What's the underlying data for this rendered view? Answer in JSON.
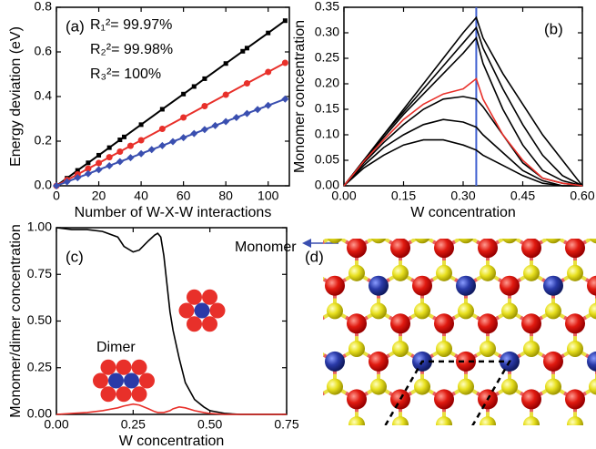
{
  "chart_data": [
    {
      "type": "line",
      "label": "(a)",
      "xlabel": "Number of W-X-W interactions",
      "ylabel": "Energy deviation (eV)",
      "xlim": [
        0,
        110
      ],
      "xticks": [
        0,
        20,
        40,
        60,
        80,
        100
      ],
      "ylim": [
        0,
        0.8
      ],
      "yticks": [
        {
          "value": 0,
          "label": "0.0"
        },
        {
          "value": 0.2,
          "label": "0.2"
        },
        {
          "value": 0.4,
          "label": "0.4"
        },
        {
          "value": 0.6,
          "label": "0.6"
        },
        {
          "value": 0.8,
          "label": "0.8"
        }
      ],
      "series": [
        {
          "name": "R₁²= 99.97%",
          "color": "#000000",
          "marker": "square",
          "x": [
            0,
            5,
            10,
            15,
            20,
            25,
            30,
            32,
            40,
            50,
            60,
            65,
            70,
            80,
            88,
            90,
            100,
            108
          ],
          "values": [
            0,
            0.034,
            0.069,
            0.103,
            0.137,
            0.171,
            0.206,
            0.219,
            0.274,
            0.343,
            0.411,
            0.445,
            0.48,
            0.548,
            0.603,
            0.617,
            0.685,
            0.74
          ]
        },
        {
          "name": "R₂²= 99.98%",
          "color": "#e8302a",
          "marker": "circle",
          "x": [
            0,
            5,
            10,
            15,
            20,
            25,
            30,
            35,
            40,
            50,
            60,
            70,
            80,
            90,
            100,
            108
          ],
          "values": [
            0,
            0.026,
            0.051,
            0.077,
            0.102,
            0.128,
            0.153,
            0.179,
            0.204,
            0.255,
            0.306,
            0.357,
            0.408,
            0.459,
            0.51,
            0.551
          ]
        },
        {
          "name": "R₃²= 100%",
          "color": "#3a4fb0",
          "marker": "diamond",
          "x": [
            0,
            5,
            10,
            15,
            20,
            25,
            30,
            35,
            40,
            45,
            50,
            55,
            60,
            65,
            70,
            75,
            80,
            85,
            90,
            95,
            100,
            108
          ],
          "values": [
            0,
            0.018,
            0.036,
            0.054,
            0.072,
            0.09,
            0.108,
            0.126,
            0.144,
            0.162,
            0.18,
            0.198,
            0.216,
            0.234,
            0.252,
            0.27,
            0.288,
            0.306,
            0.324,
            0.342,
            0.36,
            0.389
          ]
        }
      ]
    },
    {
      "type": "line",
      "label": "(b)",
      "xlabel": "W concentration",
      "ylabel": "Monomer concentration",
      "xlim": [
        0,
        0.6
      ],
      "xticks": [
        {
          "value": 0,
          "label": "0.00"
        },
        {
          "value": 0.15,
          "label": "0.15"
        },
        {
          "value": 0.3,
          "label": "0.30"
        },
        {
          "value": 0.45,
          "label": "0.45"
        },
        {
          "value": 0.6,
          "label": "0.60"
        }
      ],
      "ylim": [
        0,
        0.35
      ],
      "yticks": [
        {
          "value": 0,
          "label": "0.00"
        },
        {
          "value": 0.05,
          "label": "0.05"
        },
        {
          "value": 0.1,
          "label": "0.10"
        },
        {
          "value": 0.15,
          "label": "0.15"
        },
        {
          "value": 0.2,
          "label": "0.20"
        },
        {
          "value": 0.25,
          "label": "0.25"
        },
        {
          "value": 0.3,
          "label": "0.30"
        },
        {
          "value": 0.35,
          "label": "0.35"
        }
      ],
      "x": [
        0,
        0.05,
        0.1,
        0.15,
        0.2,
        0.25,
        0.3,
        0.333,
        0.35,
        0.4,
        0.45,
        0.5,
        0.55,
        0.6
      ],
      "vline": {
        "x": 0.333,
        "color": "#4060d0"
      },
      "series": [
        {
          "color": "#000000",
          "values": [
            0,
            0.05,
            0.1,
            0.15,
            0.2,
            0.25,
            0.3,
            0.33,
            0.29,
            0.22,
            0.16,
            0.1,
            0.05,
            0
          ]
        },
        {
          "color": "#000000",
          "values": [
            0,
            0.05,
            0.1,
            0.145,
            0.19,
            0.235,
            0.28,
            0.31,
            0.27,
            0.19,
            0.12,
            0.06,
            0.02,
            0
          ]
        },
        {
          "color": "#000000",
          "values": [
            0,
            0.05,
            0.095,
            0.14,
            0.18,
            0.22,
            0.26,
            0.29,
            0.24,
            0.15,
            0.08,
            0.03,
            0.01,
            0
          ]
        },
        {
          "color": "#000000",
          "values": [
            0,
            0.045,
            0.085,
            0.12,
            0.15,
            0.17,
            0.175,
            0.17,
            0.155,
            0.1,
            0.045,
            0.015,
            0.005,
            0
          ]
        },
        {
          "color": "#000000",
          "values": [
            0,
            0.04,
            0.075,
            0.1,
            0.12,
            0.13,
            0.125,
            0.115,
            0.1,
            0.065,
            0.03,
            0.01,
            0,
            0
          ]
        },
        {
          "color": "#000000",
          "values": [
            0,
            0.035,
            0.06,
            0.08,
            0.09,
            0.09,
            0.08,
            0.07,
            0.06,
            0.04,
            0.02,
            0.005,
            0,
            0
          ]
        },
        {
          "color": "#e8302a",
          "values": [
            0,
            0.048,
            0.09,
            0.13,
            0.16,
            0.18,
            0.19,
            0.21,
            0.17,
            0.1,
            0.05,
            0.015,
            0.005,
            0
          ]
        }
      ]
    },
    {
      "type": "line",
      "label": "(c)",
      "xlabel": "W concentration",
      "ylabel": "Monomer/dimer concentration",
      "xlim": [
        0,
        0.75
      ],
      "xticks": [
        {
          "value": 0,
          "label": "0.00"
        },
        {
          "value": 0.25,
          "label": "0.25"
        },
        {
          "value": 0.5,
          "label": "0.50"
        },
        {
          "value": 0.75,
          "label": "0.75"
        }
      ],
      "ylim": [
        0,
        1
      ],
      "yticks": [
        {
          "value": 0,
          "label": "0.00"
        },
        {
          "value": 0.25,
          "label": "0.25"
        },
        {
          "value": 0.5,
          "label": "0.50"
        },
        {
          "value": 0.75,
          "label": "0.75"
        },
        {
          "value": 1,
          "label": "1.00"
        }
      ],
      "x": [
        0,
        0.05,
        0.1,
        0.15,
        0.2,
        0.22,
        0.25,
        0.27,
        0.3,
        0.32,
        0.33,
        0.34,
        0.35,
        0.36,
        0.37,
        0.38,
        0.4,
        0.42,
        0.45,
        0.48,
        0.5,
        0.55,
        0.6,
        0.65,
        0.7,
        0.75
      ],
      "series": [
        {
          "name": "Monomer",
          "color": "#000000",
          "values": [
            1,
            0.99,
            0.99,
            0.98,
            0.95,
            0.9,
            0.87,
            0.88,
            0.93,
            0.96,
            0.97,
            0.95,
            0.85,
            0.7,
            0.55,
            0.45,
            0.3,
            0.17,
            0.08,
            0.04,
            0.02,
            0.005,
            0,
            0,
            0,
            0
          ]
        },
        {
          "name": "Dimer",
          "color": "#e8302a",
          "values": [
            0,
            0.005,
            0.01,
            0.02,
            0.035,
            0.045,
            0.055,
            0.05,
            0.03,
            0.015,
            0.01,
            0.01,
            0.01,
            0.015,
            0.02,
            0.03,
            0.04,
            0.035,
            0.02,
            0.01,
            0.005,
            0,
            0,
            0,
            0,
            0
          ]
        }
      ]
    },
    {
      "type": "diagram",
      "label": "(d)"
    }
  ]
}
